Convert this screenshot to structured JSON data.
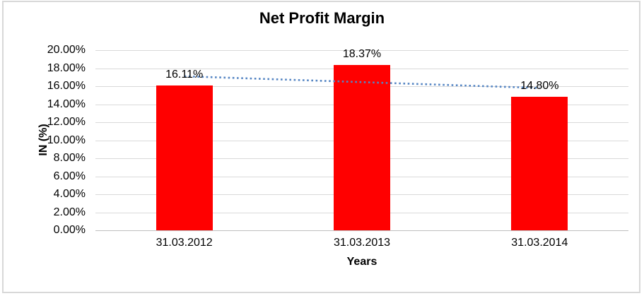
{
  "chart": {
    "title": "Net Profit Margin",
    "x_axis_title": "Years",
    "y_axis_title": "IN (%)"
  },
  "chart_data": {
    "type": "bar",
    "title": "Net Profit Margin",
    "xlabel": "Years",
    "ylabel": "IN (%)",
    "categories": [
      "31.03.2012",
      "31.03.2013",
      "31.03.2014"
    ],
    "values": [
      16.11,
      18.37,
      14.8
    ],
    "data_labels": [
      "16.11%",
      "18.37%",
      "14.80%"
    ],
    "y_ticks": [
      "0.00%",
      "2.00%",
      "4.00%",
      "6.00%",
      "8.00%",
      "10.00%",
      "12.00%",
      "14.00%",
      "16.00%",
      "18.00%",
      "20.00%"
    ],
    "ylim": [
      0,
      20
    ],
    "y_step": 2,
    "grid": true,
    "legend": false,
    "bar_color": "#ff0000",
    "trendline": {
      "type": "linear",
      "style": "dotted",
      "color": "#5585c3",
      "start": 17.1,
      "end": 15.8
    }
  }
}
